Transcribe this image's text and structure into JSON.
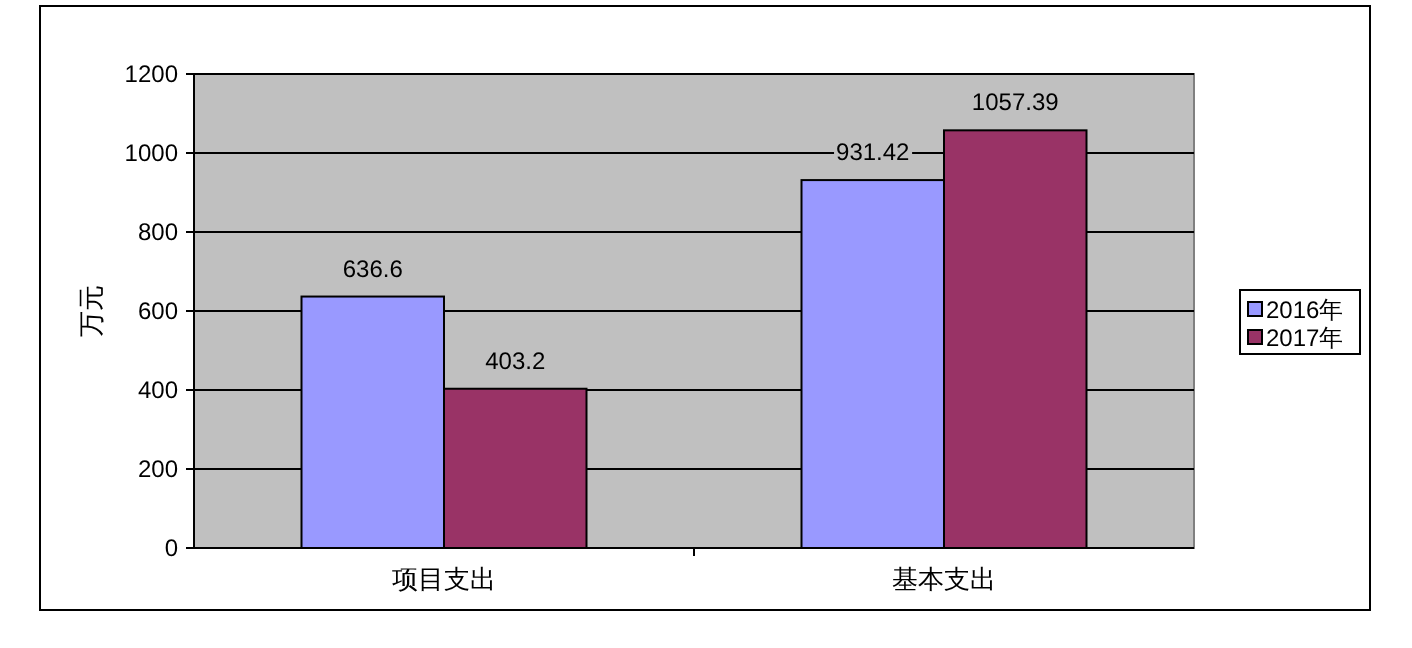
{
  "chart_data": {
    "type": "bar",
    "ylabel": "万元",
    "categories": [
      "项目支出",
      "基本支出"
    ],
    "series": [
      {
        "name": "2016年",
        "color": "#9999ff",
        "values": [
          636.6,
          931.42
        ]
      },
      {
        "name": "2017年",
        "color": "#993366",
        "values": [
          403.2,
          1057.39
        ]
      }
    ],
    "ylim": [
      0,
      1200
    ],
    "yticks": [
      0,
      200,
      400,
      600,
      800,
      1000,
      1200
    ],
    "grid": "y",
    "legend": "right",
    "data_labels": true
  }
}
